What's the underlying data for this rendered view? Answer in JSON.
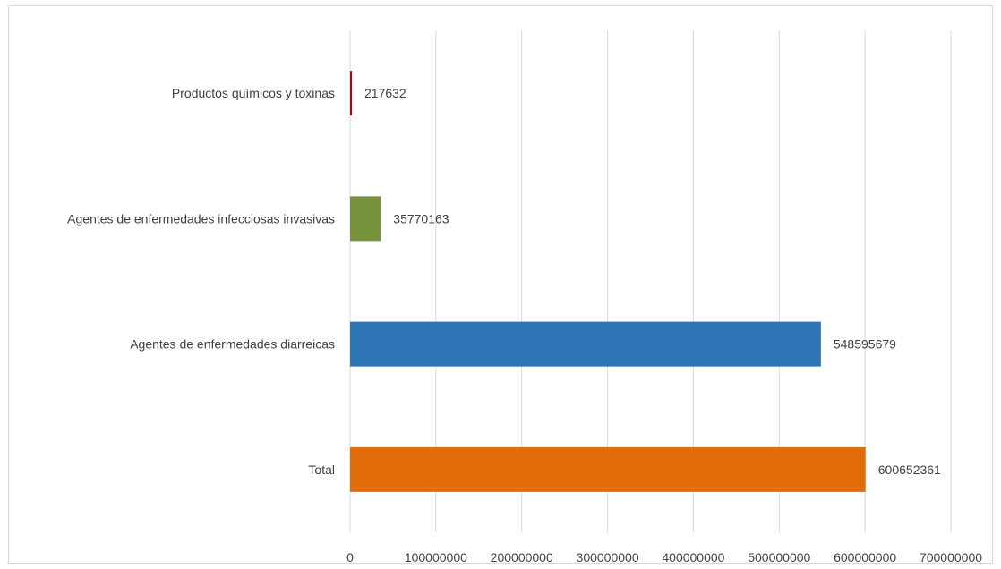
{
  "chart_data": {
    "type": "bar",
    "orientation": "horizontal",
    "title": "",
    "xlabel": "",
    "ylabel": "",
    "categories": [
      "Total",
      "Agentes de enfermedades diarreicas",
      "Agentes de enfermedades infecciosas invasivas",
      "Productos químicos y toxinas"
    ],
    "values": [
      600652361,
      548595679,
      35770163,
      217632
    ],
    "data_labels": [
      "600652361",
      "548595679",
      "35770163",
      "217632"
    ],
    "colors": [
      "#e36c0a",
      "#2e75b6",
      "#76923c",
      "#c00000"
    ],
    "xlim": [
      0,
      700000000
    ],
    "x_ticks": [
      0,
      100000000,
      200000000,
      300000000,
      400000000,
      500000000,
      600000000,
      700000000
    ],
    "x_tick_labels": [
      "0",
      "100000000",
      "200000000",
      "300000000",
      "400000000",
      "500000000",
      "600000000",
      "700000000"
    ],
    "grid": "vertical",
    "gridline_color": "#d9d9d9",
    "legend": "none"
  }
}
